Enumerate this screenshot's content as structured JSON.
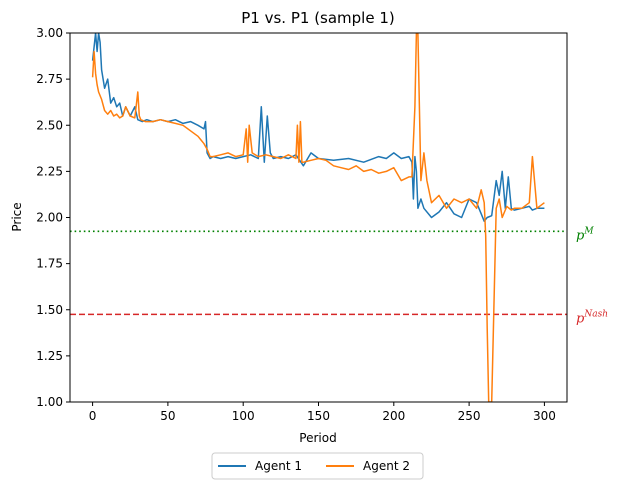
{
  "chart_data": {
    "type": "line",
    "title": "P1 vs. P1 (sample 1)",
    "xlabel": "Period",
    "ylabel": "Price",
    "xlim": [
      -15,
      315
    ],
    "ylim": [
      1.0,
      3.0
    ],
    "x_ticks": [
      0,
      50,
      100,
      150,
      200,
      250,
      300
    ],
    "x_tick_labels": [
      "0",
      "50",
      "100",
      "150",
      "200",
      "250",
      "300"
    ],
    "y_ticks": [
      1.0,
      1.25,
      1.5,
      1.75,
      2.0,
      2.25,
      2.5,
      2.75,
      3.0
    ],
    "y_tick_labels": [
      "1.00",
      "1.25",
      "1.50",
      "1.75",
      "2.00",
      "2.25",
      "2.50",
      "2.75",
      "3.00"
    ],
    "grid": false,
    "legend_placement": "bottom-center",
    "series": [
      {
        "name": "Agent 1",
        "color": "#1f77b4",
        "x": [
          0,
          2,
          3,
          4,
          5,
          6,
          8,
          10,
          12,
          14,
          16,
          18,
          20,
          22,
          25,
          28,
          30,
          33,
          36,
          40,
          45,
          50,
          55,
          60,
          65,
          70,
          74,
          75,
          76,
          78,
          80,
          85,
          90,
          95,
          100,
          105,
          110,
          112,
          113,
          114,
          116,
          118,
          120,
          125,
          130,
          135,
          140,
          145,
          150,
          160,
          170,
          180,
          190,
          195,
          200,
          205,
          210,
          212,
          213,
          214,
          215,
          216,
          218,
          220,
          225,
          230,
          235,
          240,
          245,
          250,
          255,
          258,
          260,
          262,
          265,
          268,
          270,
          272,
          274,
          276,
          278,
          280,
          285,
          290,
          292,
          295,
          300
        ],
        "values": [
          2.85,
          3.0,
          2.9,
          3.0,
          2.95,
          2.8,
          2.7,
          2.75,
          2.62,
          2.65,
          2.6,
          2.62,
          2.55,
          2.6,
          2.55,
          2.6,
          2.53,
          2.52,
          2.53,
          2.52,
          2.53,
          2.52,
          2.53,
          2.51,
          2.52,
          2.5,
          2.48,
          2.52,
          2.35,
          2.32,
          2.33,
          2.32,
          2.33,
          2.32,
          2.33,
          2.34,
          2.32,
          2.6,
          2.45,
          2.3,
          2.55,
          2.35,
          2.32,
          2.33,
          2.32,
          2.34,
          2.28,
          2.35,
          2.32,
          2.31,
          2.32,
          2.3,
          2.33,
          2.32,
          2.35,
          2.32,
          2.33,
          2.3,
          2.1,
          2.33,
          2.25,
          2.05,
          2.1,
          2.05,
          2.0,
          2.03,
          2.08,
          2.02,
          2.0,
          2.1,
          2.08,
          2.02,
          1.98,
          2.0,
          2.01,
          2.2,
          2.12,
          2.25,
          2.05,
          2.22,
          2.05,
          2.04,
          2.05,
          2.06,
          2.04,
          2.05,
          2.05
        ]
      },
      {
        "name": "Agent 2",
        "color": "#ff7f0e",
        "x": [
          0,
          1,
          2,
          3,
          4,
          6,
          8,
          10,
          12,
          14,
          16,
          18,
          20,
          22,
          25,
          28,
          30,
          31,
          32,
          35,
          40,
          45,
          50,
          55,
          60,
          65,
          70,
          72,
          74,
          76,
          78,
          80,
          85,
          90,
          95,
          100,
          102,
          103,
          104,
          106,
          110,
          115,
          120,
          125,
          130,
          135,
          136,
          137,
          138,
          139,
          140,
          145,
          150,
          155,
          160,
          165,
          170,
          175,
          180,
          185,
          190,
          195,
          200,
          205,
          210,
          212,
          214,
          215,
          216,
          217,
          218,
          220,
          222,
          225,
          230,
          235,
          240,
          245,
          250,
          255,
          258,
          260,
          261,
          262,
          263,
          265,
          268,
          270,
          272,
          275,
          278,
          280,
          285,
          290,
          292,
          295,
          300
        ],
        "values": [
          2.76,
          2.9,
          2.78,
          2.72,
          2.68,
          2.64,
          2.58,
          2.56,
          2.58,
          2.55,
          2.56,
          2.54,
          2.55,
          2.6,
          2.55,
          2.54,
          2.68,
          2.55,
          2.53,
          2.52,
          2.52,
          2.53,
          2.52,
          2.51,
          2.5,
          2.47,
          2.44,
          2.42,
          2.4,
          2.37,
          2.33,
          2.33,
          2.34,
          2.35,
          2.33,
          2.34,
          2.48,
          2.3,
          2.5,
          2.35,
          2.33,
          2.34,
          2.33,
          2.32,
          2.34,
          2.32,
          2.5,
          2.3,
          2.52,
          2.3,
          2.3,
          2.31,
          2.32,
          2.31,
          2.28,
          2.27,
          2.26,
          2.28,
          2.25,
          2.26,
          2.24,
          2.25,
          2.27,
          2.2,
          2.22,
          2.22,
          2.6,
          3.0,
          3.0,
          2.6,
          2.2,
          2.35,
          2.2,
          2.08,
          2.12,
          2.05,
          2.1,
          2.08,
          2.1,
          2.05,
          2.15,
          2.08,
          1.9,
          1.4,
          1.0,
          1.0,
          2.05,
          2.1,
          2.0,
          2.06,
          2.04,
          2.05,
          2.05,
          2.08,
          2.33,
          2.05,
          2.08
        ]
      }
    ],
    "reference_lines": [
      {
        "name": "p^M",
        "label": "p",
        "superscript": "M",
        "y": 1.925,
        "color": "#008000",
        "style": "dotted"
      },
      {
        "name": "p^Nash",
        "label": "p",
        "superscript": "Nash",
        "y": 1.475,
        "color": "#d62728",
        "style": "dashed"
      }
    ]
  }
}
